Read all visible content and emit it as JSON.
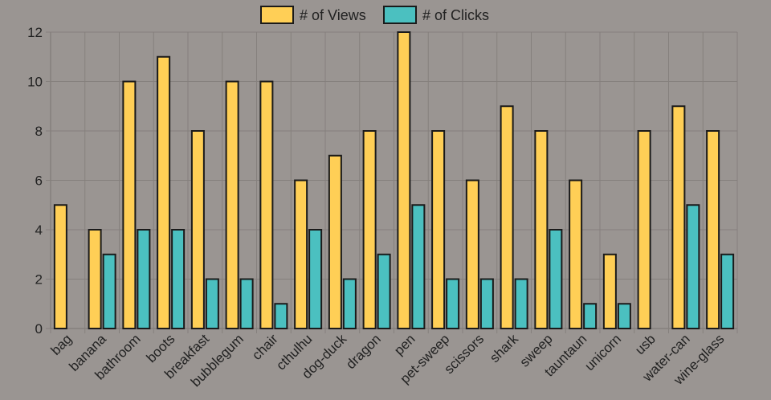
{
  "chart_data": {
    "type": "bar",
    "categories": [
      "bag",
      "banana",
      "bathroom",
      "boots",
      "breakfast",
      "bubblegum",
      "chair",
      "cthulhu",
      "dog-duck",
      "dragon",
      "pen",
      "pet-sweep",
      "scissors",
      "shark",
      "sweep",
      "tauntaun",
      "unicorn",
      "usb",
      "water-can",
      "wine-glass"
    ],
    "series": [
      {
        "name": "# of Views",
        "color": "#ffcf56",
        "values": [
          5,
          4,
          10,
          11,
          8,
          10,
          10,
          6,
          7,
          8,
          12,
          8,
          6,
          9,
          8,
          6,
          3,
          8,
          9,
          8
        ]
      },
      {
        "name": "# of Clicks",
        "color": "#4bc0c0",
        "values": [
          0,
          3,
          4,
          4,
          2,
          2,
          1,
          4,
          2,
          3,
          5,
          2,
          2,
          2,
          4,
          1,
          1,
          0,
          5,
          3
        ]
      }
    ],
    "yticks": [
      "0",
      "2",
      "4",
      "6",
      "8",
      "10",
      "12"
    ],
    "ylim": [
      0,
      12
    ],
    "grid": true,
    "legend_position": "top-center",
    "background_color": "#9a9592",
    "grid_color": "#85807d",
    "border_color": "#1a1a1a"
  }
}
